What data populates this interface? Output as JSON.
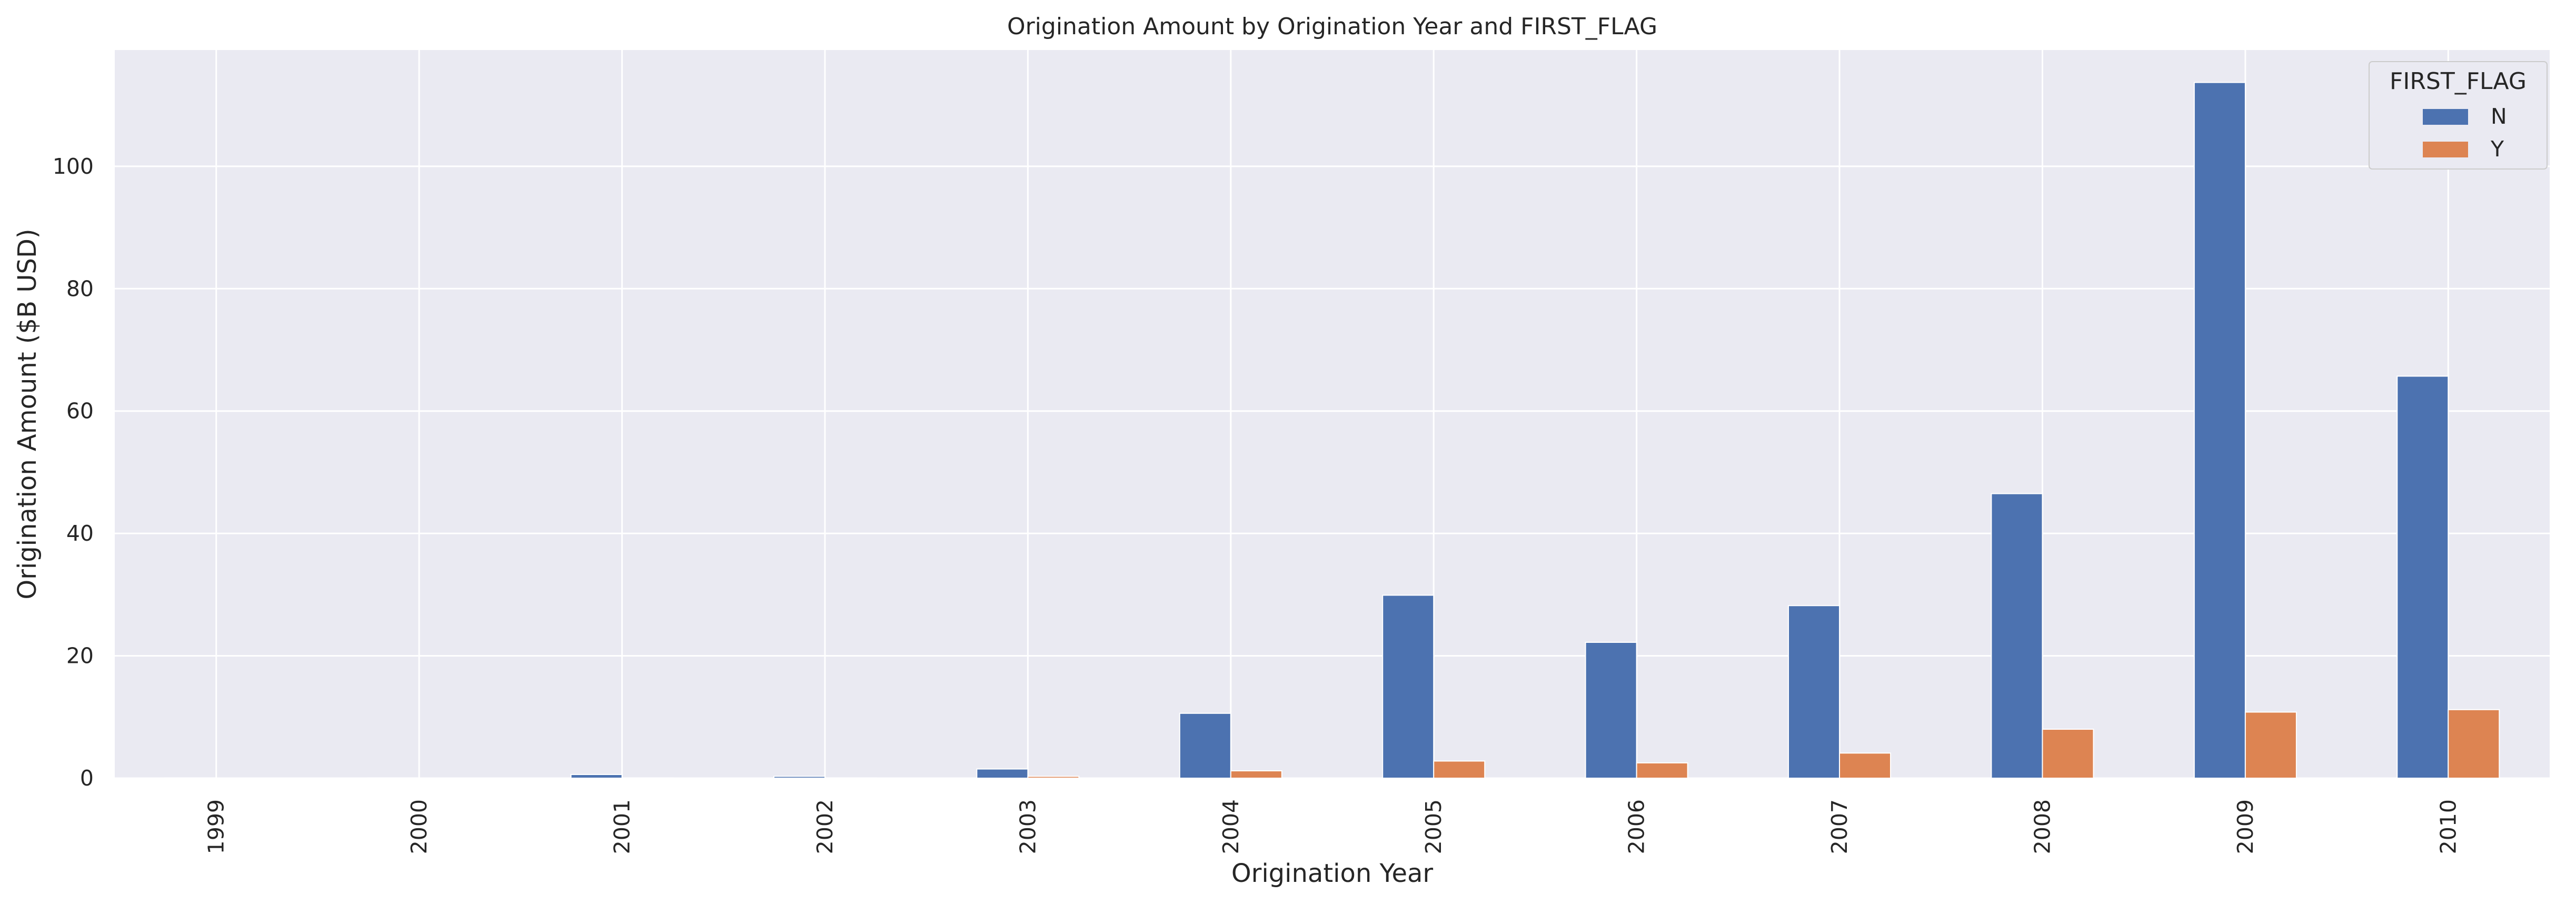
{
  "chart_data": {
    "type": "bar",
    "title": "Origination Amount by Origination Year and FIRST_FLAG",
    "xlabel": "Origination Year",
    "ylabel": "Origination Amount ($B USD)",
    "categories": [
      "1999",
      "2000",
      "2001",
      "2002",
      "2003",
      "2004",
      "2005",
      "2006",
      "2007",
      "2008",
      "2009",
      "2010"
    ],
    "series": [
      {
        "name": "N",
        "color": "#4c72b0",
        "values": [
          0.05,
          0.05,
          0.6,
          0.3,
          1.5,
          10.6,
          29.9,
          22.2,
          28.2,
          46.5,
          113.7,
          65.7
        ]
      },
      {
        "name": "Y",
        "color": "#dd8452",
        "values": [
          0.02,
          0.02,
          0.05,
          0.05,
          0.3,
          1.2,
          2.8,
          2.5,
          4.1,
          8.0,
          10.8,
          11.2
        ]
      }
    ],
    "ylim": [
      0,
      119
    ],
    "yticks": [
      0,
      20,
      40,
      60,
      80,
      100
    ],
    "legend": {
      "title": "FIRST_FLAG",
      "entries": [
        "N",
        "Y"
      ],
      "placement": "top-right"
    },
    "grid": true,
    "background": "#eaeaf2",
    "grid_color": "#ffffff"
  }
}
